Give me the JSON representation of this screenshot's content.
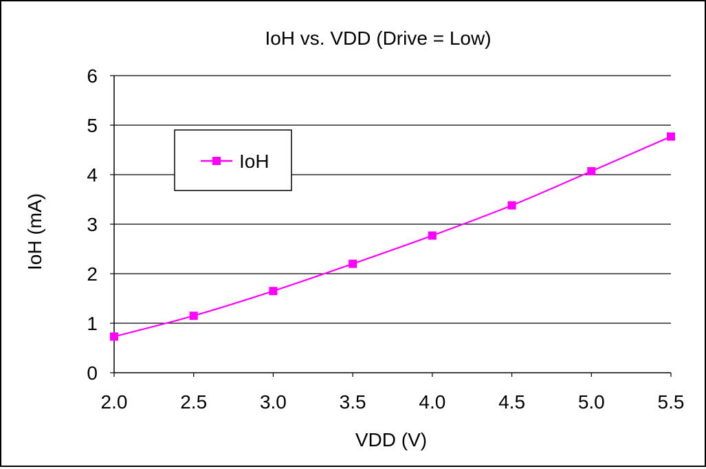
{
  "chart_data": {
    "type": "line",
    "title": "IoH vs. VDD (Drive = Low)",
    "xlabel": "VDD (V)",
    "ylabel": "IoH (mA)",
    "x": [
      2.0,
      2.5,
      3.0,
      3.5,
      4.0,
      4.5,
      5.0,
      5.5
    ],
    "x_tick_labels": [
      "2.0",
      "2.5",
      "3.0",
      "3.5",
      "4.0",
      "4.5",
      "5.0",
      "5.5"
    ],
    "y_tick_labels": [
      "0",
      "1",
      "2",
      "3",
      "4",
      "5",
      "6"
    ],
    "xlim": [
      2.0,
      5.5
    ],
    "ylim": [
      0,
      6
    ],
    "grid": "horizontal",
    "legend_position": "upper-left",
    "series": [
      {
        "name": "IoH",
        "color": "#ff00ff",
        "marker": "square",
        "values": [
          0.73,
          1.15,
          1.65,
          2.2,
          2.77,
          3.38,
          4.07,
          4.77
        ]
      }
    ]
  }
}
